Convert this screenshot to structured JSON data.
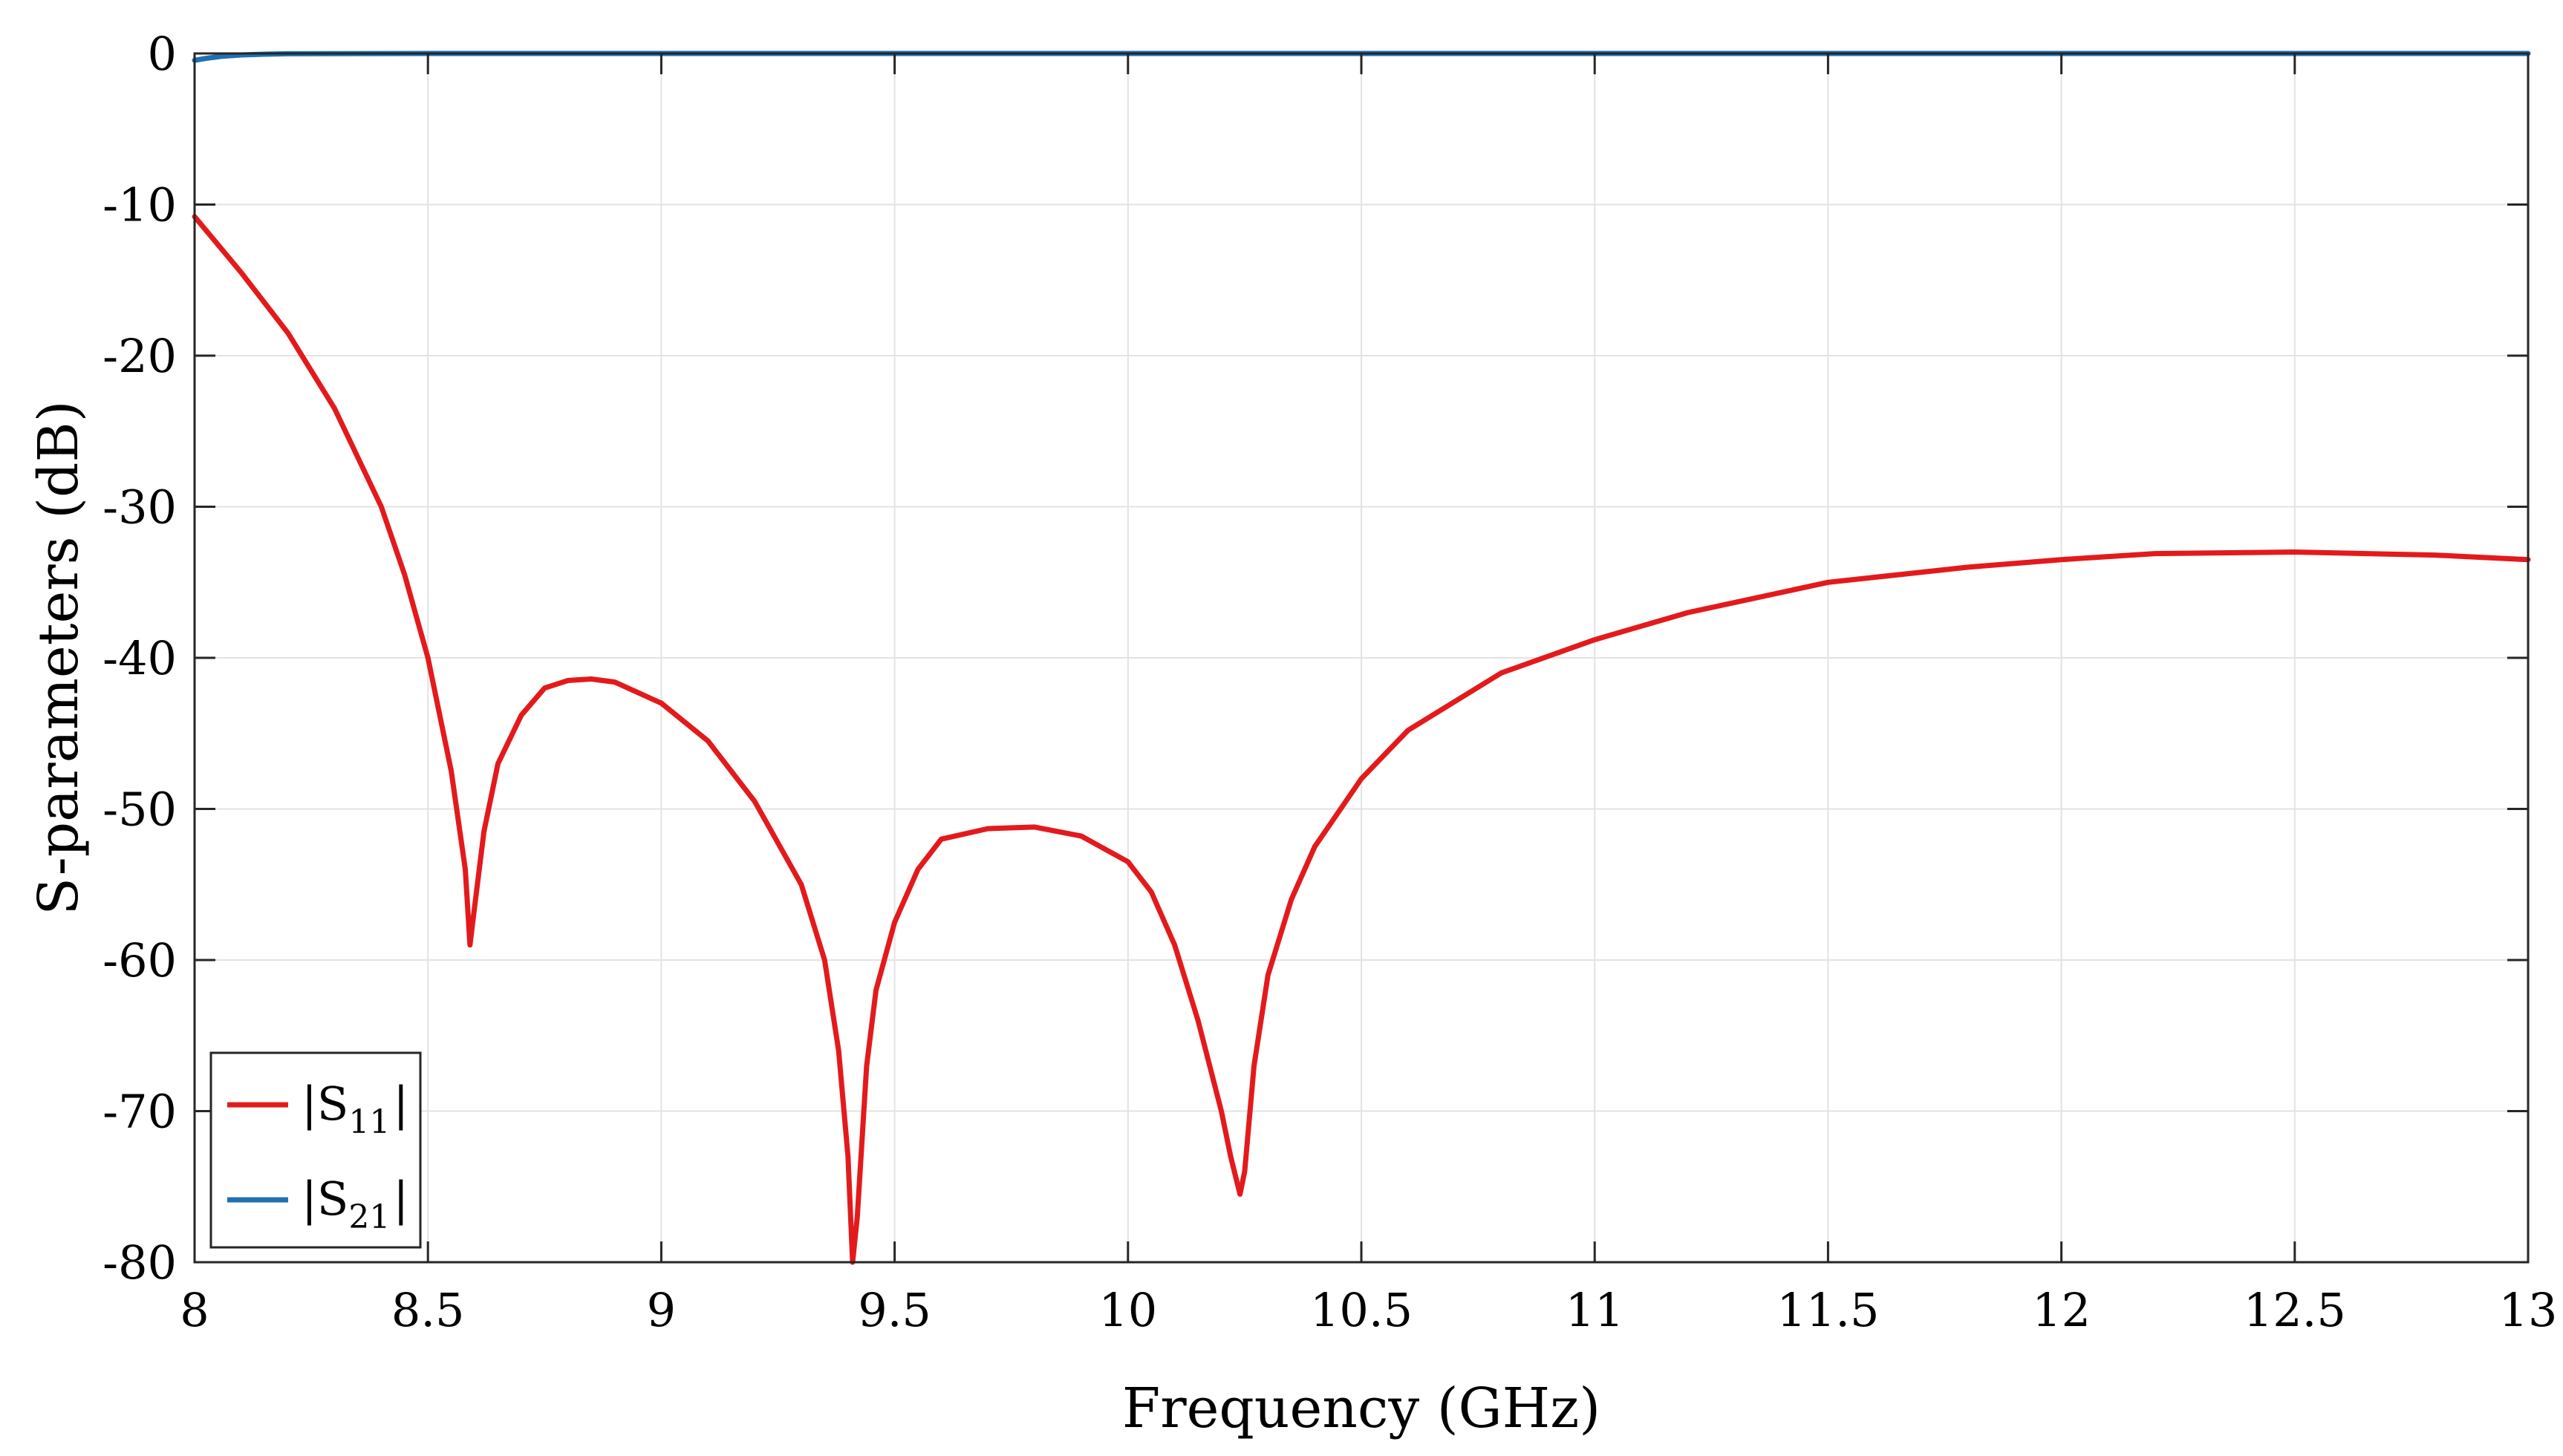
{
  "chart_data": {
    "type": "line",
    "title": "",
    "xlabel": "Frequency (GHz)",
    "ylabel": "S-parameters (dB)",
    "xlim": [
      8,
      13
    ],
    "ylim": [
      -80,
      0
    ],
    "x_ticks": [
      8,
      8.5,
      9,
      9.5,
      10,
      10.5,
      11,
      11.5,
      12,
      12.5,
      13
    ],
    "x_tick_labels": [
      "8",
      "8.5",
      "9",
      "9.5",
      "10",
      "10.5",
      "11",
      "11.5",
      "12",
      "12.5",
      "13"
    ],
    "y_ticks": [
      0,
      -10,
      -20,
      -30,
      -40,
      -50,
      -60,
      -70,
      -80
    ],
    "y_tick_labels": [
      "0",
      "-10",
      "-20",
      "-30",
      "-40",
      "-50",
      "-60",
      "-70",
      "-80"
    ],
    "grid": true,
    "legend_position": "bottom-left",
    "series": [
      {
        "name": "|S11|",
        "legend_main": "|S",
        "legend_sub": "11",
        "legend_end": "|",
        "color": "#e31a1c",
        "x": [
          8.0,
          8.1,
          8.2,
          8.3,
          8.4,
          8.45,
          8.5,
          8.55,
          8.58,
          8.59,
          8.6,
          8.62,
          8.65,
          8.7,
          8.75,
          8.8,
          8.85,
          8.9,
          9.0,
          9.1,
          9.2,
          9.3,
          9.35,
          9.38,
          9.4,
          9.41,
          9.42,
          9.44,
          9.46,
          9.5,
          9.55,
          9.6,
          9.7,
          9.8,
          9.9,
          10.0,
          10.05,
          10.1,
          10.15,
          10.2,
          10.22,
          10.24,
          10.25,
          10.27,
          10.3,
          10.35,
          10.4,
          10.5,
          10.6,
          10.8,
          11.0,
          11.2,
          11.5,
          11.8,
          12.0,
          12.2,
          12.5,
          12.8,
          13.0
        ],
        "y": [
          -10.8,
          -14.5,
          -18.5,
          -23.5,
          -30.0,
          -34.5,
          -40.0,
          -47.5,
          -54.0,
          -59.0,
          -56.5,
          -51.5,
          -47.0,
          -43.8,
          -42.0,
          -41.5,
          -41.4,
          -41.6,
          -43.0,
          -45.5,
          -49.5,
          -55.0,
          -60.0,
          -66.0,
          -73.0,
          -80.0,
          -77.0,
          -67.0,
          -62.0,
          -57.5,
          -54.0,
          -52.0,
          -51.3,
          -51.2,
          -51.8,
          -53.5,
          -55.5,
          -59.0,
          -64.0,
          -70.0,
          -73.0,
          -75.5,
          -74.0,
          -67.0,
          -61.0,
          -56.0,
          -52.5,
          -48.0,
          -44.8,
          -41.0,
          -38.8,
          -37.0,
          -35.0,
          -34.0,
          -33.5,
          -33.1,
          -33.0,
          -33.2,
          -33.5
        ]
      },
      {
        "name": "|S21|",
        "legend_main": "|S",
        "legend_sub": "21",
        "legend_end": "|",
        "color": "#1f6fb4",
        "x": [
          8.0,
          8.03,
          8.06,
          8.1,
          8.15,
          8.2,
          8.3,
          8.5,
          9.0,
          10.0,
          11.0,
          12.0,
          13.0
        ],
        "y": [
          -0.45,
          -0.3,
          -0.18,
          -0.1,
          -0.05,
          -0.02,
          -0.01,
          0.0,
          0.0,
          0.0,
          0.0,
          0.0,
          0.0
        ]
      }
    ]
  }
}
